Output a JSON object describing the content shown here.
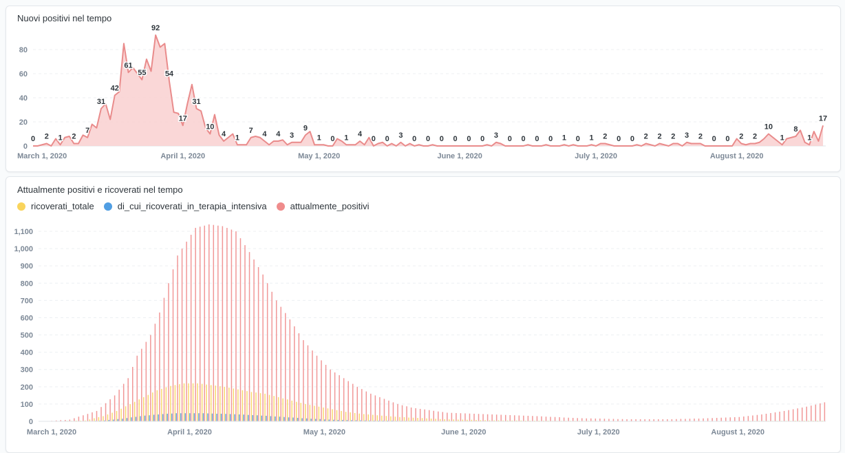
{
  "colors": {
    "line": "#e98b8b",
    "area": "#f9d3d3",
    "ricoverati_totale": "#f9d45c",
    "terapia_intensiva": "#509ee3",
    "attualmente_positivi": "#ef8c8c"
  },
  "chart_data": [
    {
      "type": "area",
      "title": "Nuovi positivi nel tempo",
      "xlabel": "",
      "ylabel": "",
      "ylim": [
        0,
        90
      ],
      "y_ticks": [
        {
          "v": 0,
          "label": "0"
        },
        {
          "v": 20,
          "label": "20"
        },
        {
          "v": 40,
          "label": "40"
        },
        {
          "v": 60,
          "label": "60"
        },
        {
          "v": 80,
          "label": "80"
        }
      ],
      "x_ticks": [
        {
          "day": 2,
          "label": "March 1, 2020"
        },
        {
          "day": 33,
          "label": "April 1, 2020"
        },
        {
          "day": 63,
          "label": "May 1, 2020"
        },
        {
          "day": 94,
          "label": "June 1, 2020"
        },
        {
          "day": 124,
          "label": "July 1, 2020"
        },
        {
          "day": 155,
          "label": "August 1, 2020"
        }
      ],
      "data_label_every": 3,
      "values": [
        0,
        0,
        1,
        2,
        0,
        6,
        1,
        7,
        8,
        2,
        2,
        9,
        7,
        18,
        15,
        31,
        35,
        22,
        42,
        45,
        85,
        61,
        65,
        60,
        55,
        72,
        62,
        92,
        82,
        85,
        54,
        28,
        27,
        17,
        35,
        51,
        31,
        29,
        15,
        10,
        26,
        9,
        4,
        7,
        10,
        1,
        1,
        1,
        7,
        8,
        7,
        4,
        1,
        4,
        4,
        5,
        1,
        3,
        3,
        3,
        9,
        12,
        1,
        1,
        1,
        0,
        0,
        6,
        4,
        1,
        1,
        1,
        4,
        1,
        7,
        0,
        2,
        3,
        0,
        2,
        0,
        3,
        0,
        2,
        0,
        1,
        0,
        0,
        1,
        0,
        0,
        0,
        0,
        0,
        0,
        0,
        0,
        0,
        0,
        0,
        1,
        0,
        3,
        2,
        0,
        0,
        0,
        0,
        0,
        1,
        0,
        0,
        0,
        1,
        0,
        0,
        0,
        1,
        0,
        1,
        0,
        0,
        0,
        1,
        0,
        2,
        2,
        1,
        0,
        0,
        0,
        0,
        0,
        1,
        0,
        2,
        1,
        0,
        2,
        1,
        0,
        2,
        2,
        0,
        3,
        2,
        2,
        2,
        0,
        0,
        0,
        0,
        0,
        0,
        0,
        6,
        2,
        1,
        2,
        2,
        3,
        6,
        10,
        7,
        4,
        1,
        6,
        7,
        8,
        13,
        3,
        1,
        12,
        4,
        17
      ]
    },
    {
      "type": "bar",
      "title": "Attualmente positivi e ricoverati nel tempo",
      "ylim": [
        0,
        1150
      ],
      "y_ticks": [
        {
          "v": 0,
          "label": "0"
        },
        {
          "v": 100,
          "label": "100"
        },
        {
          "v": 200,
          "label": "200"
        },
        {
          "v": 300,
          "label": "300"
        },
        {
          "v": 400,
          "label": "400"
        },
        {
          "v": 500,
          "label": "500"
        },
        {
          "v": 600,
          "label": "600"
        },
        {
          "v": 700,
          "label": "700"
        },
        {
          "v": 800,
          "label": "800"
        },
        {
          "v": 900,
          "label": "900"
        },
        {
          "v": 1000,
          "label": "1,000"
        },
        {
          "v": 1100,
          "label": "1,100"
        }
      ],
      "x_ticks": [
        {
          "day": 2,
          "label": "March 1, 2020"
        },
        {
          "day": 33,
          "label": "April 1, 2020"
        },
        {
          "day": 63,
          "label": "May 1, 2020"
        },
        {
          "day": 94,
          "label": "June 1, 2020"
        },
        {
          "day": 124,
          "label": "July 1, 2020"
        },
        {
          "day": 155,
          "label": "August 1, 2020"
        }
      ],
      "legend": [
        "ricoverati_totale",
        "di_cui_ricoverati_in_terapia_intensiva",
        "attualmente_positivi"
      ],
      "series": [
        {
          "name": "ricoverati_totale",
          "values": [
            0,
            0,
            1,
            1,
            2,
            2,
            3,
            3,
            4,
            4,
            5,
            11,
            18,
            24,
            30,
            40,
            50,
            60,
            73,
            87,
            100,
            113,
            127,
            140,
            153,
            167,
            180,
            188,
            197,
            205,
            210,
            215,
            220,
            220,
            220,
            220,
            217,
            213,
            210,
            207,
            203,
            200,
            195,
            190,
            185,
            180,
            175,
            170,
            167,
            163,
            160,
            153,
            147,
            140,
            133,
            127,
            120,
            113,
            107,
            100,
            95,
            90,
            85,
            80,
            75,
            70,
            65,
            60,
            55,
            52,
            48,
            45,
            42,
            40,
            38,
            35,
            33,
            31,
            29,
            27,
            25,
            24,
            22,
            21,
            20,
            19,
            17,
            16,
            15,
            13,
            12,
            11,
            11,
            10,
            10,
            9,
            9,
            8,
            7,
            7,
            6,
            6,
            6,
            5,
            5,
            5,
            5,
            5,
            4,
            4,
            4,
            4,
            4,
            4,
            3,
            3,
            3,
            3,
            3,
            3,
            3,
            3,
            3,
            3,
            2,
            2,
            2,
            2,
            2,
            2,
            2,
            2,
            2,
            2,
            2,
            2,
            2,
            2,
            2,
            2,
            2,
            2,
            2,
            2,
            2,
            2,
            2,
            2,
            2,
            2,
            2,
            2,
            2,
            2,
            2,
            2,
            2,
            2,
            3,
            3,
            3,
            3,
            3,
            3,
            3,
            3,
            3,
            3,
            4,
            4,
            4,
            4,
            4,
            4,
            4
          ]
        },
        {
          "name": "di_cui_ricoverati_in_terapia_intensiva",
          "values": [
            0,
            0,
            0,
            0,
            0,
            0,
            0,
            0,
            0,
            0,
            1,
            2,
            3,
            4,
            5,
            8,
            10,
            13,
            15,
            19,
            23,
            26,
            30,
            33,
            35,
            38,
            40,
            42,
            44,
            45,
            47,
            47,
            47,
            47,
            47,
            47,
            47,
            46,
            45,
            44,
            44,
            43,
            42,
            41,
            40,
            39,
            37,
            36,
            35,
            33,
            32,
            30,
            28,
            27,
            25,
            23,
            22,
            20,
            18,
            17,
            15,
            14,
            13,
            11,
            10,
            9,
            8,
            8,
            7,
            7,
            6,
            6,
            5,
            5,
            4,
            4,
            4,
            4,
            4,
            3,
            3,
            3,
            3,
            3,
            3,
            3,
            2,
            2,
            2,
            2,
            2,
            2,
            2,
            2,
            2,
            2,
            1,
            1,
            1,
            1,
            1,
            1,
            1,
            1,
            1,
            1,
            1,
            1,
            1,
            1,
            1,
            1,
            1,
            1,
            1,
            1,
            1,
            1,
            1,
            1,
            1,
            1,
            1,
            1,
            1,
            1,
            1,
            0,
            0,
            0,
            0,
            0,
            0,
            0,
            0,
            0,
            0,
            0,
            0,
            0,
            0,
            0,
            0,
            0,
            0,
            0,
            0,
            0,
            0,
            0,
            0,
            0,
            0,
            0,
            0,
            0,
            0,
            0,
            0,
            0,
            0,
            0,
            0,
            0,
            0,
            0,
            0,
            0,
            0,
            0,
            0
          ]
        },
        {
          "name": "attualmente_positivi",
          "values": [
            0,
            2,
            3,
            5,
            7,
            8,
            10,
            18,
            27,
            35,
            43,
            52,
            60,
            83,
            105,
            128,
            150,
            183,
            217,
            250,
            315,
            380,
            420,
            460,
            500,
            565,
            630,
            715,
            800,
            880,
            960,
            1000,
            1040,
            1080,
            1120,
            1127,
            1133,
            1140,
            1137,
            1133,
            1130,
            1120,
            1110,
            1100,
            1060,
            1020,
            980,
            937,
            893,
            850,
            800,
            750,
            700,
            663,
            627,
            590,
            550,
            510,
            470,
            440,
            410,
            380,
            353,
            327,
            300,
            283,
            267,
            250,
            233,
            217,
            200,
            187,
            173,
            160,
            150,
            140,
            130,
            120,
            110,
            100,
            93,
            87,
            80,
            76,
            72,
            69,
            65,
            61,
            57,
            54,
            50,
            49,
            48,
            47,
            46,
            45,
            44,
            43,
            42,
            41,
            40,
            39,
            38,
            37,
            36,
            35,
            34,
            33,
            32,
            31,
            30,
            29,
            27,
            26,
            25,
            24,
            22,
            21,
            20,
            19,
            18,
            17,
            17,
            16,
            16,
            15,
            14,
            14,
            13,
            13,
            12,
            12,
            12,
            12,
            12,
            12,
            12,
            12,
            12,
            12,
            12,
            13,
            14,
            14,
            15,
            16,
            16,
            17,
            18,
            19,
            20,
            21,
            22,
            23,
            24,
            25,
            28,
            31,
            34,
            37,
            40,
            44,
            48,
            52,
            56,
            60,
            65,
            70,
            75,
            80,
            85,
            91,
            97,
            104,
            110
          ]
        }
      ]
    }
  ]
}
